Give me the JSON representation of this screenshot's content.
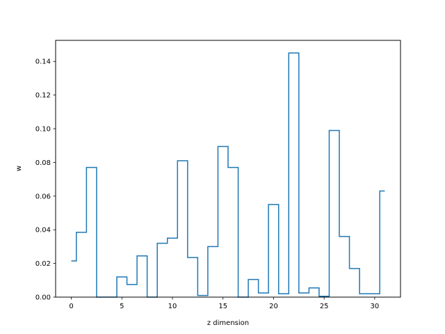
{
  "chart_data": {
    "type": "line",
    "drawstyle": "steps-mid",
    "title": "",
    "xlabel": "z dimension",
    "ylabel": "w",
    "xlim": [
      -1.55,
      32.55
    ],
    "ylim": [
      0,
      0.1525
    ],
    "xticks": [
      0,
      5,
      10,
      15,
      20,
      25,
      30
    ],
    "xtick_labels": [
      "0",
      "5",
      "10",
      "15",
      "20",
      "25",
      "30"
    ],
    "yticks": [
      0.0,
      0.02,
      0.04,
      0.06,
      0.08,
      0.1,
      0.12,
      0.14
    ],
    "ytick_labels": [
      "0.00",
      "0.02",
      "0.04",
      "0.06",
      "0.08",
      "0.10",
      "0.12",
      "0.14"
    ],
    "grid": false,
    "legend": false,
    "line_color": "#1f77b4",
    "series": [
      {
        "x": [
          0,
          1,
          2,
          3,
          4,
          5,
          6,
          7,
          8,
          9,
          10,
          11,
          12,
          13,
          14,
          15,
          16,
          17,
          18,
          19,
          20,
          21,
          22,
          23,
          24,
          25,
          26,
          27,
          28,
          29,
          30,
          31
        ],
        "values": [
          0.0215,
          0.0385,
          0.077,
          0.0,
          0.0,
          0.012,
          0.0075,
          0.0245,
          0.0,
          0.032,
          0.035,
          0.081,
          0.0235,
          0.001,
          0.03,
          0.0895,
          0.077,
          0.0,
          0.0105,
          0.0025,
          0.055,
          0.002,
          0.145,
          0.0025,
          0.0055,
          0.0005,
          0.099,
          0.036,
          0.017,
          0.002,
          0.002,
          0.063
        ]
      }
    ]
  }
}
